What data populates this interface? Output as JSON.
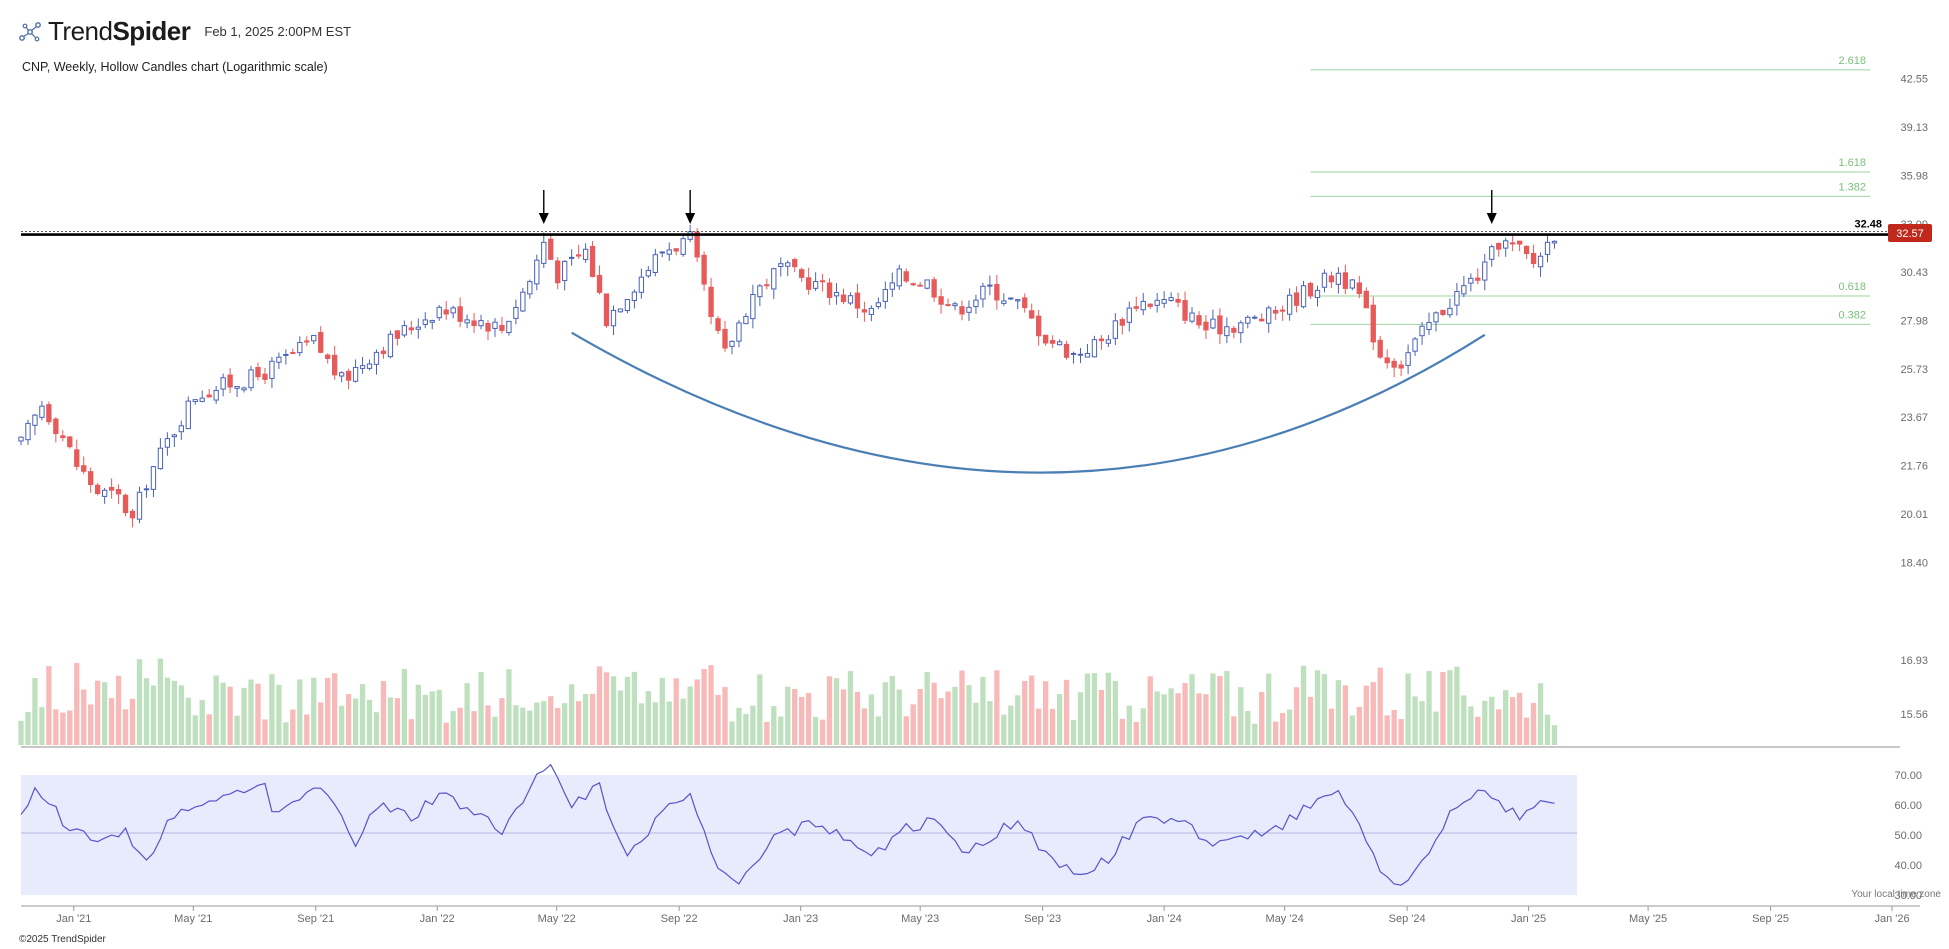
{
  "header": {
    "brand_light": "Trend",
    "brand_bold": "Spider",
    "timestamp": "Feb 1, 2025 2:00PM EST",
    "chart_title": "CNP, Weekly, Hollow Candles chart (Logarithmic scale)"
  },
  "footer": {
    "copyright": "©2025 TrendSpider",
    "timezone_note": "Your local time zone"
  },
  "colors": {
    "up": "#4a62b8",
    "down": "#e65a5a",
    "volume_up": "#bfe0bf",
    "volume_down": "#f8b9b9",
    "rsi_line": "#5555cc",
    "rsi_band": "#e8ebfb",
    "fib": "#9ed49e",
    "arc": "#4a7fb5",
    "resistance": "#000000",
    "price_badge": "#c0281c"
  },
  "chart_data": {
    "type": "candlestick",
    "symbol": "CNP",
    "interval": "Weekly",
    "scale": "log",
    "x_range": [
      "2020-11-09",
      "2026-01-12"
    ],
    "x_ticks": [
      "Jan '21",
      "May '21",
      "Sep '21",
      "Jan '22",
      "May '22",
      "Sep '22",
      "Jan '23",
      "May '23",
      "Sep '23",
      "Jan '24",
      "May '24",
      "Sep '24",
      "Jan '25",
      "May '25",
      "Sep '25",
      "Jan '26"
    ],
    "y_range": [
      14.5,
      45.5
    ],
    "y_ticks": [
      "42.55",
      "39.13",
      "35.98",
      "33.09",
      "30.43",
      "27.98",
      "25.73",
      "23.67",
      "21.76",
      "20.01",
      "18.40",
      "16.93",
      "15.56"
    ],
    "last_price": "32.57",
    "resistance": {
      "level": 32.48,
      "label": "32.48"
    },
    "fib_levels": [
      {
        "label": "2.618",
        "value": 43.2
      },
      {
        "label": "1.618",
        "value": 36.2
      },
      {
        "label": "1.382",
        "value": 34.7
      },
      {
        "label": "0.618",
        "value": 29.2
      },
      {
        "label": "0.382",
        "value": 27.8
      }
    ],
    "arrows": [
      "2022-04-18",
      "2022-09-12",
      "2024-11-25"
    ],
    "cup_arc": {
      "start": {
        "date": "2022-05-16",
        "price": 27.4
      },
      "bottom": {
        "date": "2023-08-28",
        "price": 21.5
      },
      "end": {
        "date": "2024-11-18",
        "price": 27.3
      }
    },
    "anchors": [
      [
        "2020-11-09",
        22.6
      ],
      [
        "2020-11-30",
        24.2
      ],
      [
        "2020-12-21",
        22.9
      ],
      [
        "2021-01-04",
        21.8
      ],
      [
        "2021-01-25",
        20.8
      ],
      [
        "2021-02-15",
        20.6
      ],
      [
        "2021-03-01",
        19.8
      ],
      [
        "2021-03-15",
        21.2
      ],
      [
        "2021-04-05",
        22.7
      ],
      [
        "2021-05-03",
        24.6
      ],
      [
        "2021-06-07",
        25.1
      ],
      [
        "2021-07-05",
        25.4
      ],
      [
        "2021-08-02",
        26.2
      ],
      [
        "2021-08-30",
        27.0
      ],
      [
        "2021-09-27",
        25.2
      ],
      [
        "2021-11-01",
        26.6
      ],
      [
        "2022-01-03",
        28.6
      ],
      [
        "2022-02-14",
        28.0
      ],
      [
        "2022-03-07",
        27.6
      ],
      [
        "2022-04-04",
        30.0
      ],
      [
        "2022-04-18",
        32.1
      ],
      [
        "2022-05-02",
        30.3
      ],
      [
        "2022-05-30",
        31.6
      ],
      [
        "2022-06-20",
        28.1
      ],
      [
        "2022-07-18",
        29.8
      ],
      [
        "2022-08-15",
        31.6
      ],
      [
        "2022-09-12",
        32.2
      ],
      [
        "2022-10-03",
        28.0
      ],
      [
        "2022-10-17",
        26.4
      ],
      [
        "2022-11-14",
        29.3
      ],
      [
        "2022-12-12",
        30.7
      ],
      [
        "2023-01-02",
        30.1
      ],
      [
        "2023-02-13",
        29.2
      ],
      [
        "2023-03-13",
        28.4
      ],
      [
        "2023-04-10",
        30.2
      ],
      [
        "2023-05-08",
        29.9
      ],
      [
        "2023-06-05",
        28.5
      ],
      [
        "2023-07-10",
        29.6
      ],
      [
        "2023-08-07",
        28.8
      ],
      [
        "2023-09-04",
        27.2
      ],
      [
        "2023-10-02",
        26.4
      ],
      [
        "2023-10-30",
        27.0
      ],
      [
        "2023-12-04",
        28.9
      ],
      [
        "2024-01-08",
        28.9
      ],
      [
        "2024-02-12",
        27.6
      ],
      [
        "2024-03-11",
        27.8
      ],
      [
        "2024-04-15",
        28.2
      ],
      [
        "2024-05-20",
        29.4
      ],
      [
        "2024-06-24",
        30.4
      ],
      [
        "2024-07-15",
        29.2
      ],
      [
        "2024-08-05",
        26.4
      ],
      [
        "2024-08-26",
        26.0
      ],
      [
        "2024-09-23",
        27.8
      ],
      [
        "2024-10-21",
        29.3
      ],
      [
        "2024-11-18",
        30.6
      ],
      [
        "2024-12-02",
        32.1
      ],
      [
        "2024-12-23",
        31.6
      ],
      [
        "2025-01-06",
        30.9
      ],
      [
        "2025-01-27",
        32.57
      ]
    ],
    "rsi": {
      "ticks": [
        "70.00",
        "60.00",
        "50.00",
        "40.00",
        "30.00"
      ],
      "range": [
        30,
        70
      ],
      "anchors": [
        [
          "2020-11-09",
          58
        ],
        [
          "2020-11-23",
          64
        ],
        [
          "2020-12-07",
          61
        ],
        [
          "2020-12-28",
          52
        ],
        [
          "2021-01-25",
          49
        ],
        [
          "2021-02-22",
          51
        ],
        [
          "2021-03-15",
          40
        ],
        [
          "2021-04-05",
          55
        ],
        [
          "2021-05-03",
          60
        ],
        [
          "2021-05-24",
          63
        ],
        [
          "2021-06-21",
          66
        ],
        [
          "2021-07-12",
          69
        ],
        [
          "2021-07-19",
          58
        ],
        [
          "2021-08-16",
          63
        ],
        [
          "2021-09-06",
          67
        ],
        [
          "2021-09-27",
          55
        ],
        [
          "2021-10-11",
          48
        ],
        [
          "2021-11-01",
          60
        ],
        [
          "2021-12-06",
          56
        ],
        [
          "2022-01-03",
          64
        ],
        [
          "2022-02-07",
          58
        ],
        [
          "2022-03-07",
          52
        ],
        [
          "2022-04-04",
          66
        ],
        [
          "2022-04-25",
          74
        ],
        [
          "2022-05-16",
          60
        ],
        [
          "2022-06-13",
          66
        ],
        [
          "2022-07-11",
          42
        ],
        [
          "2022-08-15",
          58
        ],
        [
          "2022-09-12",
          62
        ],
        [
          "2022-10-10",
          40
        ],
        [
          "2022-10-31",
          34
        ],
        [
          "2022-11-28",
          47
        ],
        [
          "2023-01-09",
          54
        ],
        [
          "2023-02-13",
          49
        ],
        [
          "2023-03-13",
          43
        ],
        [
          "2023-04-17",
          52
        ],
        [
          "2023-05-15",
          55
        ],
        [
          "2023-06-12",
          44
        ],
        [
          "2023-07-10",
          48
        ],
        [
          "2023-08-07",
          56
        ],
        [
          "2023-09-04",
          43
        ],
        [
          "2023-10-02",
          37
        ],
        [
          "2023-11-06",
          42
        ],
        [
          "2023-12-11",
          56
        ],
        [
          "2024-01-15",
          55
        ],
        [
          "2024-02-19",
          47
        ],
        [
          "2024-03-25",
          49
        ],
        [
          "2024-04-22",
          52
        ],
        [
          "2024-05-27",
          60
        ],
        [
          "2024-06-24",
          65
        ],
        [
          "2024-07-15",
          55
        ],
        [
          "2024-08-05",
          37
        ],
        [
          "2024-08-26",
          32
        ],
        [
          "2024-09-23",
          45
        ],
        [
          "2024-10-21",
          60
        ],
        [
          "2024-11-18",
          65
        ],
        [
          "2024-12-02",
          60
        ],
        [
          "2024-12-23",
          56
        ],
        [
          "2025-01-13",
          60
        ],
        [
          "2025-01-27",
          61
        ]
      ]
    },
    "volume": {
      "range": [
        0,
        100
      ],
      "note": "Volume histogram colored by candle direction"
    }
  }
}
